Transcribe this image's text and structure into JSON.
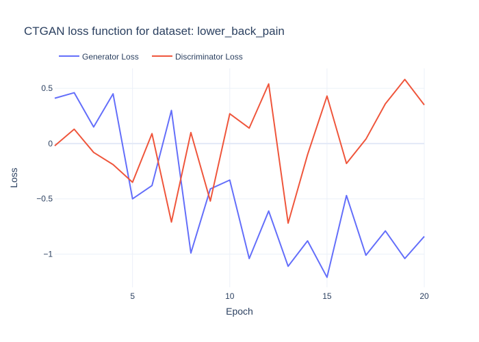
{
  "chart_data": {
    "type": "line",
    "title": "CTGAN loss function for dataset: lower_back_pain",
    "xlabel": "Epoch",
    "ylabel": "Loss",
    "xlim": [
      1,
      20
    ],
    "ylim": [
      -1.3,
      0.68
    ],
    "xticks": [
      5,
      10,
      15,
      20
    ],
    "yticks": [
      0.5,
      0,
      -0.5,
      -1
    ],
    "ytick_labels": [
      "0.5",
      "0",
      "−0.5",
      "−1"
    ],
    "grid": true,
    "legend_position": "top-left",
    "x": [
      1,
      2,
      3,
      4,
      5,
      6,
      7,
      8,
      9,
      10,
      11,
      12,
      13,
      14,
      15,
      16,
      17,
      18,
      19,
      20
    ],
    "series": [
      {
        "name": "Generator Loss",
        "color": "#636efa",
        "values": [
          0.41,
          0.46,
          0.15,
          0.45,
          -0.5,
          -0.38,
          0.3,
          -0.99,
          -0.41,
          -0.33,
          -1.04,
          -0.61,
          -1.11,
          -0.88,
          -1.21,
          -0.47,
          -1.01,
          -0.79,
          -1.04,
          -0.84
        ]
      },
      {
        "name": "Discriminator Loss",
        "color": "#ef553b",
        "values": [
          -0.02,
          0.13,
          -0.08,
          -0.19,
          -0.35,
          0.09,
          -0.71,
          0.1,
          -0.52,
          0.27,
          0.14,
          0.54,
          -0.72,
          -0.1,
          0.43,
          -0.18,
          0.04,
          0.36,
          0.58,
          0.35
        ]
      }
    ]
  }
}
